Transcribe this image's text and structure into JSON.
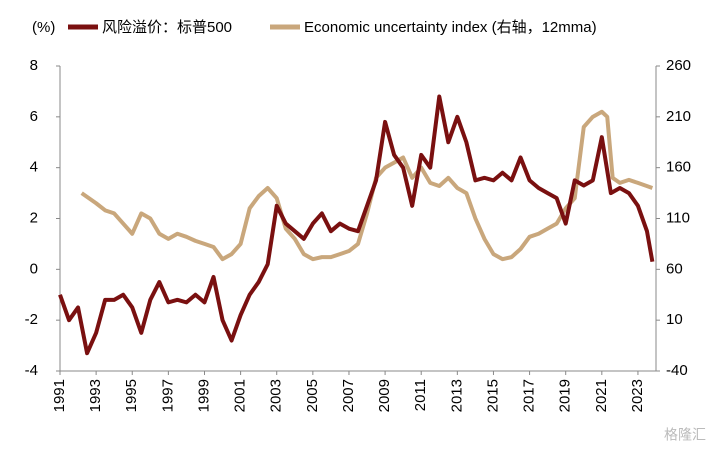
{
  "chart_data": {
    "type": "line",
    "y_unit_label": "(%)",
    "watermark": "格隆汇",
    "xlim": [
      1991,
      2024
    ],
    "xticks": [
      1991,
      1993,
      1995,
      1997,
      1999,
      2001,
      2003,
      2005,
      2007,
      2009,
      2011,
      2013,
      2015,
      2017,
      2019,
      2021,
      2023
    ],
    "ylim": [
      -4,
      8
    ],
    "yticks": [
      -4,
      -2,
      0,
      2,
      4,
      6,
      8
    ],
    "y2lim": [
      -40,
      260
    ],
    "y2ticks": [
      -40,
      10,
      60,
      110,
      160,
      210,
      260
    ],
    "series": [
      {
        "name": "风险溢价：标普500",
        "color": "#7a1010",
        "x": [
          1991,
          1991.5,
          1992,
          1992.5,
          1993,
          1993.5,
          1994,
          1994.5,
          1995,
          1995.5,
          1996,
          1996.5,
          1997,
          1997.5,
          1998,
          1998.5,
          1999,
          1999.5,
          2000,
          2000.5,
          2001,
          2001.5,
          2002,
          2002.5,
          2003,
          2003.5,
          2004,
          2004.5,
          2005,
          2005.5,
          2006,
          2006.5,
          2007,
          2007.5,
          2008,
          2008.5,
          2009,
          2009.5,
          2010,
          2010.5,
          2011,
          2011.5,
          2012,
          2012.5,
          2013,
          2013.5,
          2014,
          2014.5,
          2015,
          2015.5,
          2016,
          2016.5,
          2017,
          2017.5,
          2018,
          2018.5,
          2019,
          2019.5,
          2020,
          2020.5,
          2021,
          2021.5,
          2022,
          2022.5,
          2023,
          2023.5,
          2023.8
        ],
        "values": [
          -1,
          -2,
          -1.5,
          -3.3,
          -2.5,
          -1.2,
          -1.2,
          -1,
          -1.5,
          -2.5,
          -1.2,
          -0.5,
          -1.3,
          -1.2,
          -1.3,
          -1,
          -1.3,
          -0.3,
          -2,
          -2.8,
          -1.8,
          -1,
          -0.5,
          0.2,
          2.5,
          1.8,
          1.5,
          1.2,
          1.8,
          2.2,
          1.5,
          1.8,
          1.6,
          1.5,
          2.5,
          3.5,
          5.8,
          4.5,
          4,
          2.5,
          4.5,
          4,
          6.8,
          5,
          6,
          5,
          3.5,
          3.6,
          3.5,
          3.8,
          3.5,
          4.4,
          3.5,
          3.2,
          3,
          2.8,
          1.8,
          3.5,
          3.3,
          3.5,
          5.2,
          3,
          3.2,
          3,
          2.5,
          1.5,
          0.3
        ]
      },
      {
        "name": "Economic uncertainty index (右轴，12mma)",
        "color": "#c9a77c",
        "axis": "y2",
        "x": [
          1992.2,
          1993,
          1993.5,
          1994,
          1995,
          1995.5,
          1996,
          1996.5,
          1997,
          1997.5,
          1998,
          1998.5,
          1999,
          1999.5,
          2000,
          2000.5,
          2001,
          2001.5,
          2002,
          2002.5,
          2003,
          2003.5,
          2004,
          2004.5,
          2005,
          2005.5,
          2006,
          2006.5,
          2007,
          2007.5,
          2008,
          2008.5,
          2009,
          2009.5,
          2010,
          2010.5,
          2011,
          2011.5,
          2012,
          2012.5,
          2013,
          2013.5,
          2014,
          2014.5,
          2015,
          2015.5,
          2016,
          2016.5,
          2017,
          2017.5,
          2018,
          2018.5,
          2019,
          2019.5,
          2020,
          2020.5,
          2021,
          2021.3,
          2021.6,
          2022,
          2022.5,
          2023,
          2023.8
        ],
        "values": [
          135,
          125,
          118,
          115,
          95,
          115,
          110,
          95,
          90,
          95,
          92,
          88,
          85,
          82,
          70,
          75,
          85,
          120,
          132,
          140,
          130,
          100,
          90,
          75,
          70,
          72,
          72,
          75,
          78,
          85,
          115,
          150,
          160,
          165,
          170,
          150,
          160,
          145,
          142,
          150,
          140,
          135,
          110,
          90,
          75,
          70,
          72,
          80,
          92,
          95,
          100,
          105,
          120,
          130,
          200,
          210,
          215,
          210,
          150,
          145,
          148,
          145,
          140
        ]
      }
    ]
  }
}
